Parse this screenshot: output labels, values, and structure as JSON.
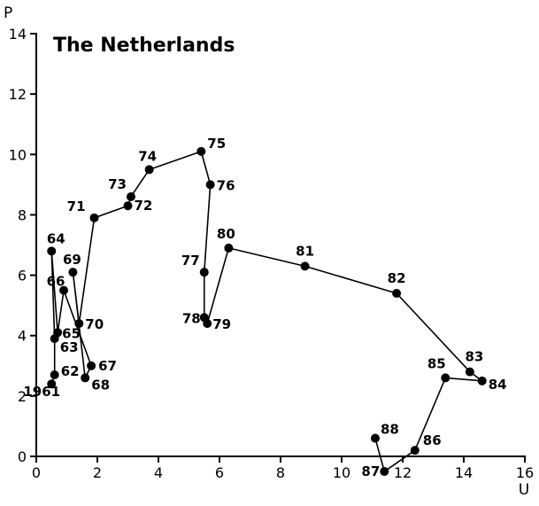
{
  "chart_data": {
    "type": "line",
    "title": "The Netherlands",
    "xlabel": "U",
    "ylabel": "P",
    "xlim": [
      0,
      16
    ],
    "ylim": [
      0,
      14
    ],
    "x_ticks": [
      0,
      2,
      4,
      6,
      8,
      10,
      12,
      14,
      16
    ],
    "y_ticks": [
      0,
      2,
      4,
      6,
      8,
      10,
      12,
      14
    ],
    "grid": false,
    "series": [
      {
        "marker": "filled-circle",
        "color": "#000000",
        "points": [
          {
            "label": "1961",
            "x": 0.5,
            "y": 2.4
          },
          {
            "label": "62",
            "x": 0.6,
            "y": 2.7
          },
          {
            "label": "63",
            "x": 0.6,
            "y": 3.9
          },
          {
            "label": "64",
            "x": 0.5,
            "y": 6.8
          },
          {
            "label": "65",
            "x": 0.7,
            "y": 4.1
          },
          {
            "label": "66",
            "x": 0.9,
            "y": 5.5
          },
          {
            "label": "67",
            "x": 1.8,
            "y": 3.0
          },
          {
            "label": "68",
            "x": 1.6,
            "y": 2.6
          },
          {
            "label": "69",
            "x": 1.2,
            "y": 6.1
          },
          {
            "label": "70",
            "x": 1.4,
            "y": 4.4
          },
          {
            "label": "71",
            "x": 1.9,
            "y": 7.9
          },
          {
            "label": "72",
            "x": 3.0,
            "y": 8.3
          },
          {
            "label": "73",
            "x": 3.1,
            "y": 8.6
          },
          {
            "label": "74",
            "x": 3.7,
            "y": 9.5
          },
          {
            "label": "75",
            "x": 5.4,
            "y": 10.1
          },
          {
            "label": "76",
            "x": 5.7,
            "y": 9.0
          },
          {
            "label": "77",
            "x": 5.5,
            "y": 6.1
          },
          {
            "label": "78",
            "x": 5.5,
            "y": 4.6
          },
          {
            "label": "79",
            "x": 5.6,
            "y": 4.4
          },
          {
            "label": "80",
            "x": 6.3,
            "y": 6.9
          },
          {
            "label": "81",
            "x": 8.8,
            "y": 6.3
          },
          {
            "label": "82",
            "x": 11.8,
            "y": 5.4
          },
          {
            "label": "83",
            "x": 14.2,
            "y": 2.8
          },
          {
            "label": "84",
            "x": 14.6,
            "y": 2.5
          },
          {
            "label": "85",
            "x": 13.4,
            "y": 2.6
          },
          {
            "label": "86",
            "x": 12.4,
            "y": 0.2
          },
          {
            "label": "87",
            "x": 11.4,
            "y": -0.5
          },
          {
            "label": "88",
            "x": 11.1,
            "y": 0.6
          }
        ]
      }
    ]
  }
}
